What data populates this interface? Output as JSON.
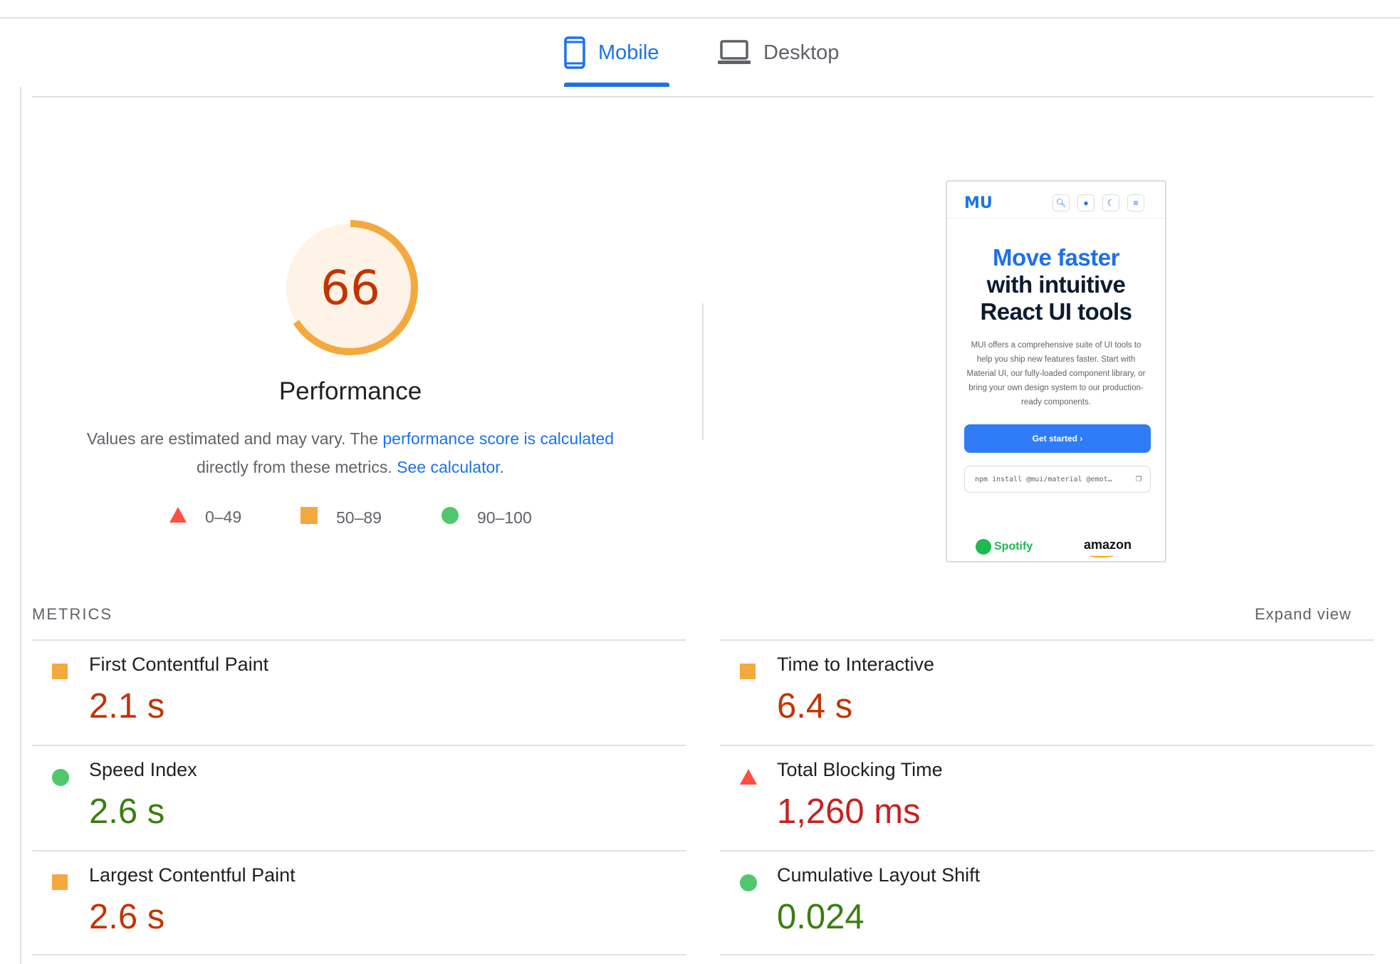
{
  "tabs": {
    "mobile": "Mobile",
    "desktop": "Desktop"
  },
  "performance": {
    "score": "66",
    "score_value": 66,
    "title": "Performance",
    "desc_prefix": "Values are estimated and may vary. The ",
    "desc_link1": "performance score is calculated",
    "desc_middle": " directly from these metrics. ",
    "desc_link2": "See calculator",
    "desc_suffix": "."
  },
  "legend": {
    "fail": "0–49",
    "average": "50–89",
    "pass": "90–100"
  },
  "screenshot": {
    "logo": "MU",
    "headline_blue": "Move faster",
    "headline_line2": "with intuitive",
    "headline_line3": "React UI tools",
    "paragraph": "MUI offers a comprehensive suite of UI tools to help you ship new features faster. Start with Material UI, our fully-loaded component library, or bring your own design system to our production-ready components.",
    "cta": "Get started  ›",
    "npm": "npm install @mui/material @emot…",
    "brand1": "Spotify",
    "brand2": "amazon"
  },
  "metrics": {
    "label": "METRICS",
    "expand": "Expand view",
    "items": [
      {
        "name": "First Contentful Paint",
        "value": "2.1 s",
        "status": "average"
      },
      {
        "name": "Time to Interactive",
        "value": "6.4 s",
        "status": "average"
      },
      {
        "name": "Speed Index",
        "value": "2.6 s",
        "status": "pass"
      },
      {
        "name": "Total Blocking Time",
        "value": "1,260 ms",
        "status": "fail"
      },
      {
        "name": "Largest Contentful Paint",
        "value": "2.6 s",
        "status": "average"
      },
      {
        "name": "Cumulative Layout Shift",
        "value": "0.024",
        "status": "pass"
      }
    ]
  },
  "colors": {
    "accent": "#1a73e8",
    "average": "#ffa400",
    "pass": "#0cce6b",
    "fail": "#ff4e42",
    "gauge_fill": "#fef3e6"
  }
}
